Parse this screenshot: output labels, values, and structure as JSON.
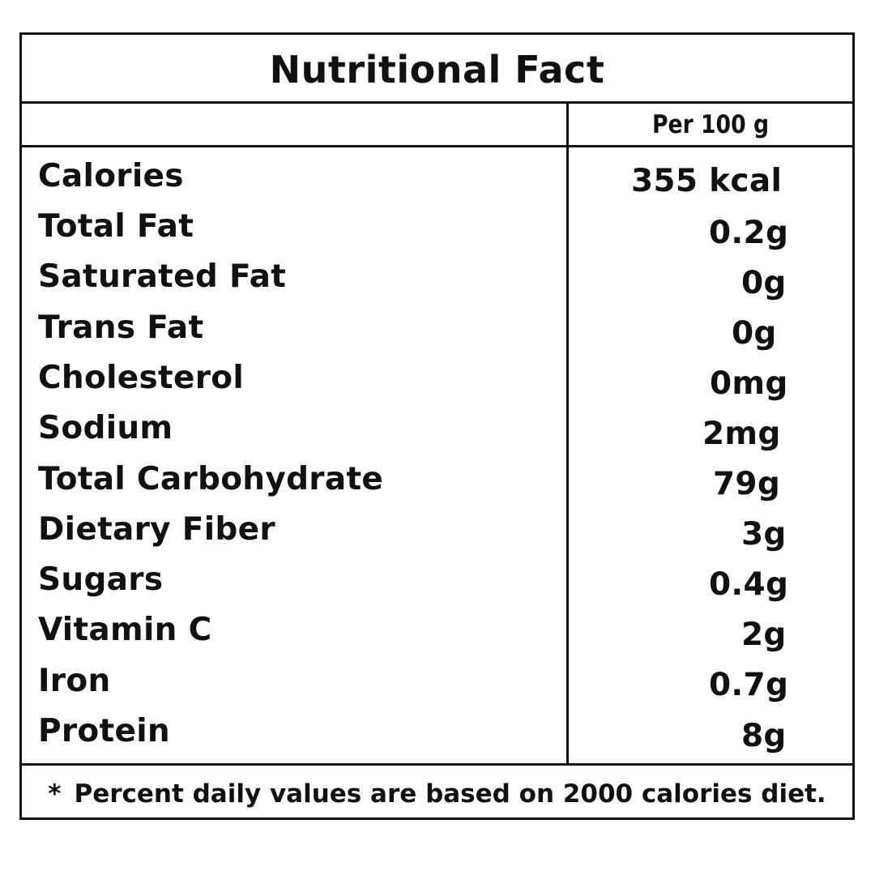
{
  "title": "Nutritional Fact",
  "serving_header": "Per 100 g",
  "nutrients": [
    {
      "name": "Calories",
      "value": "355 kcal"
    },
    {
      "name": "Total Fat",
      "value": "0.2g"
    },
    {
      "name": "Saturated Fat",
      "value": "0g"
    },
    {
      "name": "Trans Fat",
      "value": "0g"
    },
    {
      "name": "Cholesterol",
      "value": "0mg"
    },
    {
      "name": "Sodium",
      "value": "2mg"
    },
    {
      "name": "Total Carbohydrate",
      "value": "79g"
    },
    {
      "name": "Dietary Fiber",
      "value": "3g"
    },
    {
      "name": "Sugars",
      "value": "0.4g"
    },
    {
      "name": "Vitamin C",
      "value": "2g"
    },
    {
      "name": "Iron",
      "value": "0.7g"
    },
    {
      "name": "Protein",
      "value": "8g"
    }
  ],
  "footnote": {
    "marker": "*",
    "text": "Percent daily values are based on 2000 calories diet."
  },
  "colors": {
    "ink": "#111111",
    "background": "#ffffff"
  }
}
